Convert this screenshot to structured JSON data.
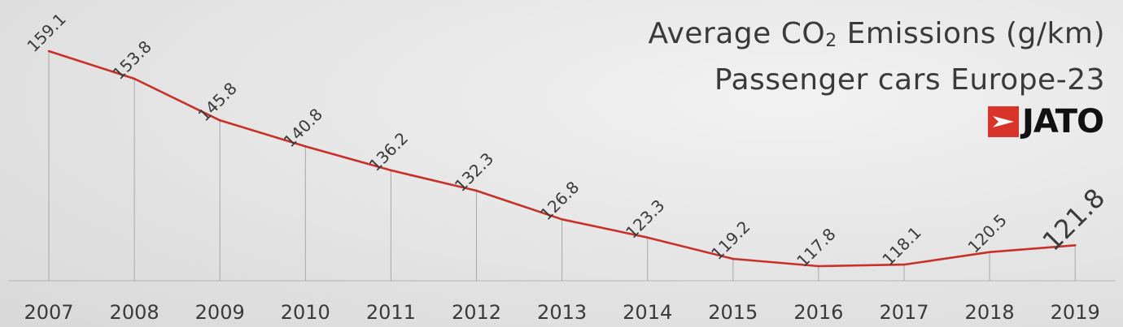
{
  "title": {
    "line1_prefix": "Average CO",
    "line1_subscript": "2",
    "line1_suffix": " Emissions (g/km)",
    "line2": "Passenger cars Europe-23"
  },
  "logo": {
    "text": "JATO",
    "icon": "jato-arrow-icon",
    "color": "#d8342a"
  },
  "colors": {
    "line": "#c8312a",
    "text": "#3a3a3a",
    "gridline": "#a8a8a8",
    "baseline": "#bdbdbd"
  },
  "chart_data": {
    "type": "line",
    "title": "Average CO2 Emissions (g/km) Passenger cars Europe-23",
    "xlabel": "",
    "ylabel": "",
    "categories": [
      "2007",
      "2008",
      "2009",
      "2010",
      "2011",
      "2012",
      "2013",
      "2014",
      "2015",
      "2016",
      "2017",
      "2018",
      "2019"
    ],
    "values": [
      159.1,
      153.8,
      145.8,
      140.8,
      136.2,
      132.3,
      126.8,
      123.3,
      119.2,
      117.8,
      118.1,
      120.5,
      121.8
    ],
    "labels": [
      "159.1",
      "153.8",
      "145.8",
      "140.8",
      "136.2",
      "132.3",
      "126.8",
      "123.3",
      "119.2",
      "117.8",
      "118.1",
      "120.5",
      "121.8"
    ],
    "highlighted_label_index": 12,
    "grid": "vertical drop lines",
    "legend": "none"
  }
}
